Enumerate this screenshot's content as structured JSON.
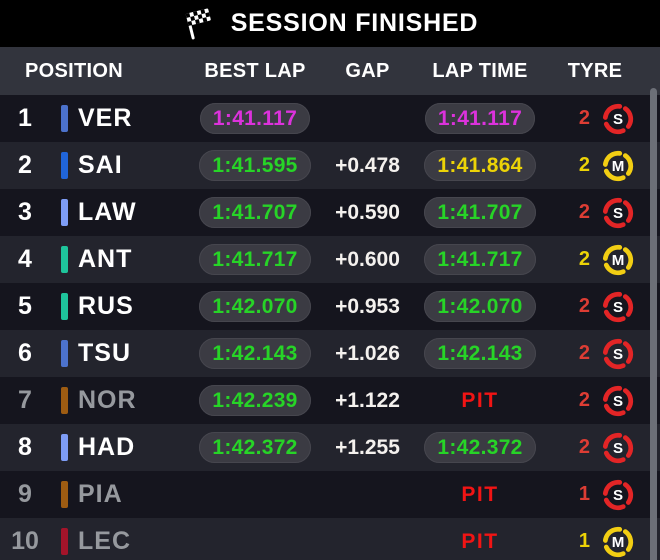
{
  "banner": {
    "title": "SESSION FINISHED",
    "icon": "checkered-flag"
  },
  "columns": [
    "POSITION",
    "BEST LAP",
    "GAP",
    "LAP TIME",
    "TYRE"
  ],
  "colors": {
    "purple": "#dc32dc",
    "green": "#27d427",
    "yellow": "#ecd307",
    "pit_red": "#f11414",
    "count_red": "#dd3d34",
    "count_yellow": "#ecd307",
    "tyre_soft": "#e32526",
    "tyre_medium": "#f2ce13",
    "dim_text": "#96999e",
    "row_odd": "#15151e",
    "row_even": "#23242d",
    "header_bg": "#32343d"
  },
  "rows": [
    {
      "pos": "1",
      "driver": "VER",
      "team_color": "#4c72cc",
      "in_pit": false,
      "best_lap": "1:41.117",
      "best_color": "purple",
      "gap": "",
      "lap_time": "1:41.117",
      "lap_color": "purple",
      "lap_is_pit": false,
      "stops": "2",
      "count_color": "count_red",
      "tyre": "S"
    },
    {
      "pos": "2",
      "driver": "SAI",
      "team_color": "#2065d9",
      "in_pit": false,
      "best_lap": "1:41.595",
      "best_color": "green",
      "gap": "+0.478",
      "lap_time": "1:41.864",
      "lap_color": "yellow",
      "lap_is_pit": false,
      "stops": "2",
      "count_color": "count_yellow",
      "tyre": "M"
    },
    {
      "pos": "3",
      "driver": "LAW",
      "team_color": "#7e9df6",
      "in_pit": false,
      "best_lap": "1:41.707",
      "best_color": "green",
      "gap": "+0.590",
      "lap_time": "1:41.707",
      "lap_color": "green",
      "lap_is_pit": false,
      "stops": "2",
      "count_color": "count_red",
      "tyre": "S"
    },
    {
      "pos": "4",
      "driver": "ANT",
      "team_color": "#1ec49b",
      "in_pit": false,
      "best_lap": "1:41.717",
      "best_color": "green",
      "gap": "+0.600",
      "lap_time": "1:41.717",
      "lap_color": "green",
      "lap_is_pit": false,
      "stops": "2",
      "count_color": "count_yellow",
      "tyre": "M"
    },
    {
      "pos": "5",
      "driver": "RUS",
      "team_color": "#1ec49b",
      "in_pit": false,
      "best_lap": "1:42.070",
      "best_color": "green",
      "gap": "+0.953",
      "lap_time": "1:42.070",
      "lap_color": "green",
      "lap_is_pit": false,
      "stops": "2",
      "count_color": "count_red",
      "tyre": "S"
    },
    {
      "pos": "6",
      "driver": "TSU",
      "team_color": "#4c72cc",
      "in_pit": false,
      "best_lap": "1:42.143",
      "best_color": "green",
      "gap": "+1.026",
      "lap_time": "1:42.143",
      "lap_color": "green",
      "lap_is_pit": false,
      "stops": "2",
      "count_color": "count_red",
      "tyre": "S"
    },
    {
      "pos": "7",
      "driver": "NOR",
      "team_color": "#9e5c12",
      "in_pit": true,
      "best_lap": "1:42.239",
      "best_color": "green",
      "gap": "+1.122",
      "lap_time": "PIT",
      "lap_color": "pit_red",
      "lap_is_pit": true,
      "stops": "2",
      "count_color": "count_red",
      "tyre": "S"
    },
    {
      "pos": "8",
      "driver": "HAD",
      "team_color": "#7e9df6",
      "in_pit": false,
      "best_lap": "1:42.372",
      "best_color": "green",
      "gap": "+1.255",
      "lap_time": "1:42.372",
      "lap_color": "green",
      "lap_is_pit": false,
      "stops": "2",
      "count_color": "count_red",
      "tyre": "S"
    },
    {
      "pos": "9",
      "driver": "PIA",
      "team_color": "#9e5c12",
      "in_pit": true,
      "best_lap": "",
      "best_color": "green",
      "gap": "",
      "lap_time": "PIT",
      "lap_color": "pit_red",
      "lap_is_pit": true,
      "stops": "1",
      "count_color": "count_red",
      "tyre": "S"
    },
    {
      "pos": "10",
      "driver": "LEC",
      "team_color": "#a3142a",
      "in_pit": true,
      "best_lap": "",
      "best_color": "green",
      "gap": "",
      "lap_time": "PIT",
      "lap_color": "pit_red",
      "lap_is_pit": true,
      "stops": "1",
      "count_color": "count_yellow",
      "tyre": "M"
    }
  ]
}
